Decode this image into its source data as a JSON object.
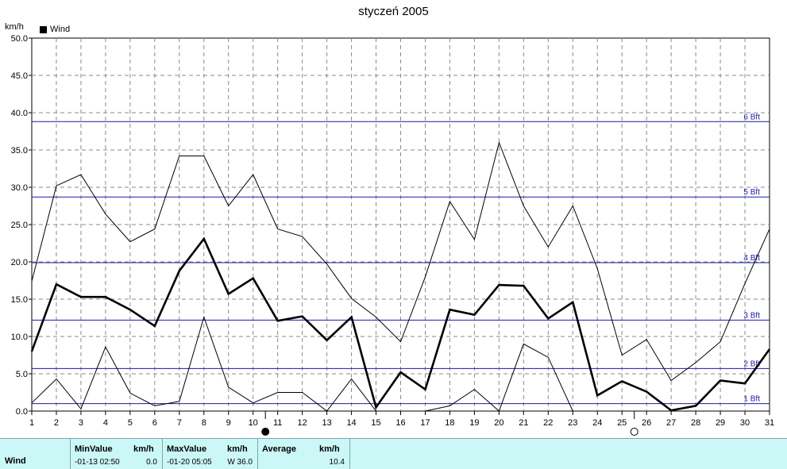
{
  "title": "styczeń 2005",
  "unit": "km/h",
  "legend": [
    {
      "label": "Wind",
      "color": "#000000"
    }
  ],
  "chart_data": {
    "type": "line",
    "title": "styczeń 2005",
    "ylabel": "km/h",
    "xlabel": "",
    "ylim": [
      0,
      50
    ],
    "xlim": [
      1,
      31
    ],
    "yticks": [
      "0.0",
      "5.0",
      "10.0",
      "15.0",
      "20.0",
      "25.0",
      "30.0",
      "35.0",
      "40.0",
      "45.0",
      "50.0"
    ],
    "x": [
      1,
      2,
      3,
      4,
      5,
      6,
      7,
      8,
      9,
      10,
      11,
      12,
      13,
      14,
      15,
      16,
      17,
      18,
      19,
      20,
      21,
      22,
      23,
      24,
      25,
      26,
      27,
      28,
      29,
      30,
      31
    ],
    "series": [
      {
        "name": "Wind",
        "role": "average",
        "values": [
          8.0,
          17.0,
          15.3,
          15.3,
          13.6,
          11.4,
          18.8,
          23.1,
          15.7,
          17.8,
          12.1,
          12.7,
          9.5,
          12.6,
          0.5,
          5.2,
          2.9,
          13.6,
          12.9,
          16.9,
          16.8,
          12.4,
          14.6,
          2.1,
          4.0,
          2.6,
          0.1,
          0.7,
          4.1,
          3.7,
          8.3
        ]
      },
      {
        "role": "max",
        "values": [
          17.4,
          30.2,
          31.7,
          26.4,
          22.7,
          24.4,
          34.2,
          34.2,
          27.5,
          31.7,
          24.4,
          23.4,
          19.7,
          15.1,
          12.6,
          9.3,
          18.0,
          28.1,
          23.0,
          36.0,
          27.5,
          22.0,
          27.5,
          19.1,
          7.5,
          9.6,
          4.1,
          6.5,
          9.3,
          17.1,
          24.4
        ]
      },
      {
        "role": "min",
        "values": [
          1.1,
          4.3,
          0.3,
          8.6,
          2.4,
          0.7,
          1.3,
          12.6,
          3.2,
          1.1,
          2.5,
          2.5,
          0.0,
          4.3,
          0.0,
          null,
          0.0,
          0.7,
          2.9,
          0.0,
          9.0,
          7.2,
          0.0,
          null,
          null,
          null,
          null,
          null,
          null,
          null,
          null
        ]
      }
    ],
    "reference_lines": [
      {
        "label": "1 Bft",
        "value": 1.0
      },
      {
        "label": "2 Bft",
        "value": 5.7
      },
      {
        "label": "3 Bft",
        "value": 12.2
      },
      {
        "label": "4 Bft",
        "value": 19.9
      },
      {
        "label": "5 Bft",
        "value": 28.7
      },
      {
        "label": "6 Bft",
        "value": 38.8
      }
    ],
    "grid": true,
    "legend_position": "top-left",
    "moon_phase_markers": [
      {
        "day": 10.5,
        "phase": "new"
      },
      {
        "day": 25.5,
        "phase": "full"
      }
    ]
  },
  "stats": {
    "row_label": "Wind",
    "min_header": "MinValue",
    "min_unit": "km/h",
    "min_date": "-01-13  02:50",
    "min_value": "0.0",
    "max_header": "MaxValue",
    "max_unit": "km/h",
    "max_date": "-01-20  05:05",
    "max_value": "W 36.0",
    "avg_header": "Average",
    "avg_unit": "km/h",
    "avg_value": "10.4"
  }
}
